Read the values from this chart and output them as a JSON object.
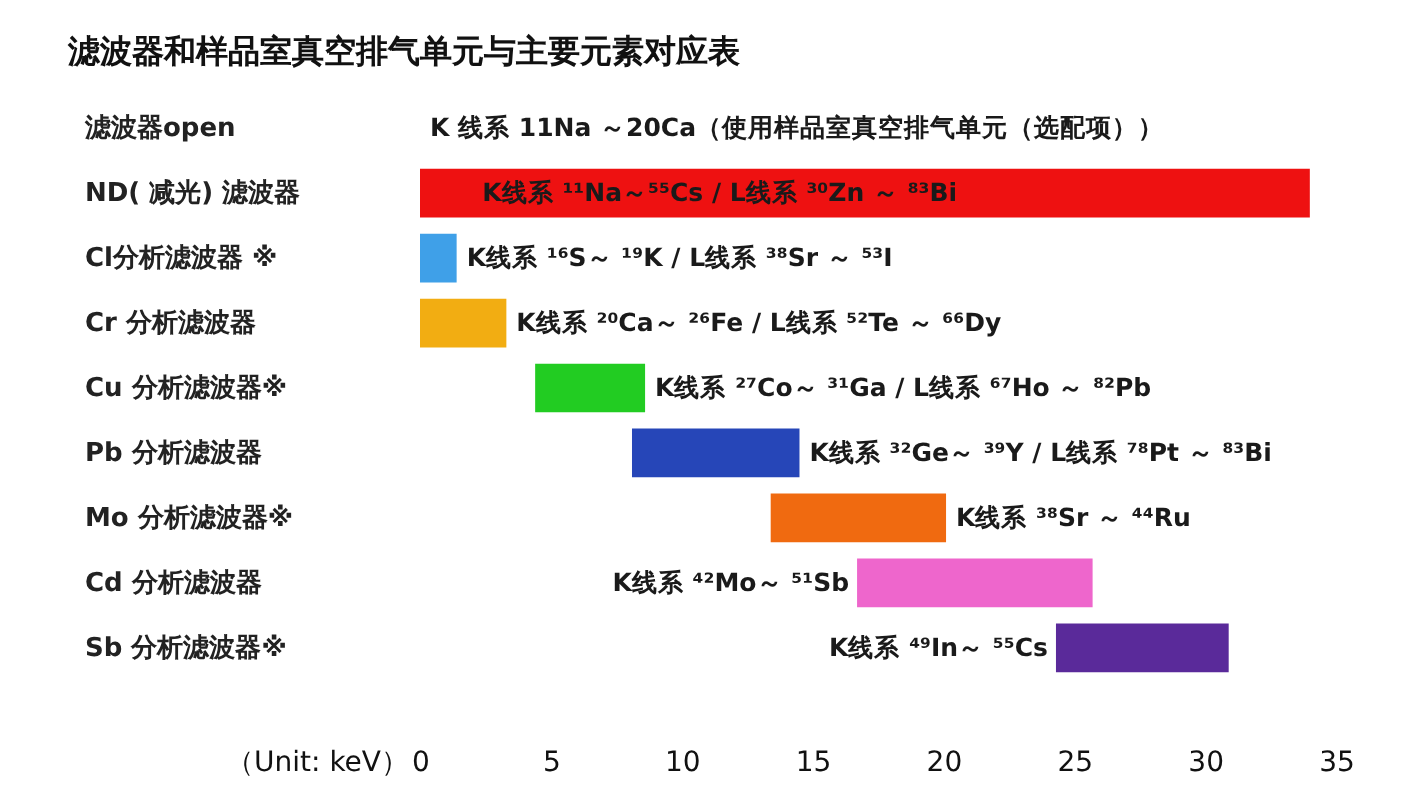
{
  "chart_data": {
    "type": "bar",
    "orientation": "horizontal",
    "title": "滤波器和样品室真空排气单元与主要元素对应表",
    "xlabel": "（Unit: keV）",
    "categories": [
      "滤波器open",
      "ND( 减光) 滤波器",
      "Cl分析滤波器 ※",
      "Cr 分析滤波器",
      "Cu 分析滤波器※",
      "Pb 分析滤波器",
      "Mo 分析滤波器※",
      "Cd 分析滤波器",
      "Sb 分析滤波器※"
    ],
    "base": [
      null,
      0,
      0,
      0,
      4.4,
      8.1,
      13.4,
      16.7,
      24.3
    ],
    "values": [
      null,
      34,
      1.4,
      3.3,
      4.2,
      6.4,
      6.7,
      9.0,
      6.6
    ],
    "colors": [
      null,
      "#ee1111",
      "#3fa0e8",
      "#f2ad12",
      "#22cc22",
      "#2646b8",
      "#f06a10",
      "#ee66cc",
      "#5a2a9a"
    ],
    "xlim": [
      0,
      35
    ],
    "xticks": [
      0,
      5,
      10,
      15,
      20,
      25,
      30,
      35
    ],
    "annotations": [
      "K 线系 11Na ～20Ca（使用样品室真空排气单元（选配项））",
      {
        "text": "K线系 ¹¹Na～⁵⁵Cs / L线系 ³⁰Zn ～ ⁸³Bi",
        "x": 2,
        "y": "ND( 减光) 滤波器"
      },
      {
        "text": "K线系 ¹⁶S～ ¹⁹K / L线系 ³⁸Sr ～ ⁵³I",
        "x": 1.4,
        "y": "Cl分析滤波器 ※"
      },
      {
        "text": "K线系 ²⁰Ca～ ²⁶Fe / L线系 ⁵²Te ～ ⁶⁶Dy",
        "x": 3.3,
        "y": "Cr 分析滤波器"
      },
      {
        "text": "K线系 ²⁷Co～ ³¹Ga / L线系 ⁶⁷Ho ～ ⁸²Pb",
        "x": 8.6,
        "y": "Cu 分析滤波器※"
      },
      {
        "text": "K线系 ³²Ge～ ³⁹Y / L线系 ⁷⁸Pt ～ ⁸³Bi",
        "x": 14.5,
        "y": "Pb 分析滤波器"
      },
      {
        "text": "K线系 ³⁸Sr ～ ⁴⁴Ru",
        "x": 20.1,
        "y": "Mo 分析滤波器※"
      },
      {
        "text": "K线系 ⁴²Mo～ ⁵¹Sb",
        "x": 16.7,
        "y": "Cd 分析滤波器"
      },
      {
        "text": "K线系 ⁴⁹In～ ⁵⁵Cs",
        "x": 24.3,
        "y": "Sb 分析滤波器※"
      }
    ]
  }
}
